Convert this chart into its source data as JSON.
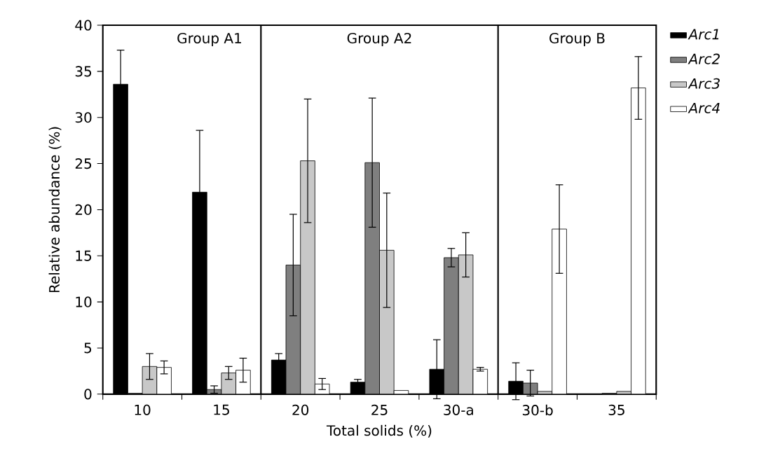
{
  "chart_data": {
    "type": "bar",
    "xlabel": "Total solids (%)",
    "ylabel": "Relative abundance (%)",
    "categories": [
      "10",
      "15",
      "20",
      "25",
      "30-a",
      "30-b",
      "35"
    ],
    "ylim": [
      0,
      40
    ],
    "yticks": [
      0,
      5,
      10,
      15,
      20,
      25,
      30,
      35,
      40
    ],
    "grid": false,
    "legend": "top right",
    "series": [
      {
        "name": "Arc1",
        "color": "#000000",
        "values": [
          33.6,
          21.9,
          3.7,
          1.3,
          2.7,
          1.4,
          null
        ],
        "errors": [
          3.7,
          6.7,
          0.7,
          0.3,
          3.2,
          2.0,
          null
        ]
      },
      {
        "name": "Arc2",
        "color": "#7f7f7f",
        "values": [
          0.1,
          0.5,
          14.0,
          25.1,
          14.8,
          1.2,
          0.1
        ],
        "errors": [
          null,
          0.4,
          5.5,
          7.0,
          1.0,
          1.4,
          null
        ]
      },
      {
        "name": "Arc3",
        "color": "#c8c8c8",
        "values": [
          3.0,
          2.3,
          25.3,
          15.6,
          15.1,
          0.3,
          0.3
        ],
        "errors": [
          1.4,
          0.7,
          6.7,
          6.2,
          2.4,
          null,
          null
        ]
      },
      {
        "name": "Arc4",
        "color": "#ffffff",
        "values": [
          2.9,
          2.6,
          1.1,
          0.4,
          2.7,
          17.9,
          33.2
        ],
        "errors": [
          0.7,
          1.3,
          0.6,
          null,
          0.2,
          4.8,
          3.4
        ]
      }
    ],
    "annotations": [
      "Group A1",
      "Group A2",
      "Group B"
    ]
  }
}
